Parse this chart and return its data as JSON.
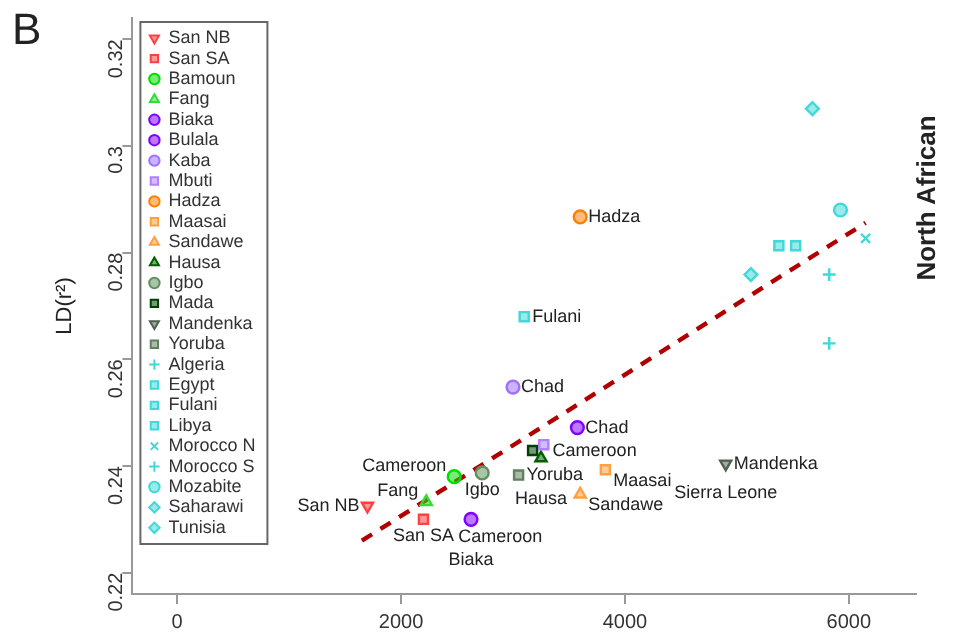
{
  "chart_data": {
    "type": "scatter",
    "ylabel": "LD(r²)",
    "xlim": [
      -400,
      6600
    ],
    "ylim": [
      0.216,
      0.324
    ],
    "xticks": [
      0,
      2000,
      4000,
      6000
    ],
    "yticks": [
      0.22,
      0.24,
      0.26,
      0.28,
      0.3,
      0.32
    ],
    "grid": false,
    "legend": "top left",
    "series": [
      {
        "name": "San NB",
        "color": "#ff4040",
        "marker": "triangle-down",
        "x": [
          1700
        ],
        "values": [
          0.2325
        ]
      },
      {
        "name": "San SA",
        "color": "#ff4040",
        "marker": "square",
        "x": [
          2200
        ],
        "values": [
          0.23
        ]
      },
      {
        "name": "Bamoun",
        "color": "#00dd00",
        "marker": "circle",
        "x": [
          2475
        ],
        "values": [
          0.238
        ]
      },
      {
        "name": "Fang",
        "color": "#33dd33",
        "marker": "triangle",
        "x": [
          2225
        ],
        "values": [
          0.2333
        ]
      },
      {
        "name": "Biaka",
        "color": "#8000ff",
        "marker": "circle",
        "x": [
          2625
        ],
        "values": [
          0.23
        ]
      },
      {
        "name": "Bulala",
        "color": "#8000ff",
        "marker": "circle",
        "x": [
          3575
        ],
        "values": [
          0.2472
        ]
      },
      {
        "name": "Kaba",
        "color": "#a070ff",
        "marker": "circle",
        "x": [
          3000
        ],
        "values": [
          0.2548
        ]
      },
      {
        "name": "Mbuti",
        "color": "#b080ff",
        "marker": "square",
        "x": [
          3275
        ],
        "values": [
          0.244
        ]
      },
      {
        "name": "Hadza",
        "color": "#ff8000",
        "marker": "circle",
        "x": [
          3600
        ],
        "values": [
          0.2867
        ]
      },
      {
        "name": "Maasai",
        "color": "#ffa040",
        "marker": "square",
        "x": [
          3825
        ],
        "values": [
          0.2393
        ]
      },
      {
        "name": "Sandawe",
        "color": "#ffa040",
        "marker": "triangle",
        "x": [
          3600
        ],
        "values": [
          0.2347
        ]
      },
      {
        "name": "Hausa",
        "color": "#006000",
        "marker": "triangle",
        "x": [
          3250
        ],
        "values": [
          0.2415
        ]
      },
      {
        "name": "Igbo",
        "color": "#609060",
        "marker": "circle",
        "x": [
          2725
        ],
        "values": [
          0.2387
        ]
      },
      {
        "name": "Mada",
        "color": "#004000",
        "marker": "square",
        "x": [
          3175
        ],
        "values": [
          0.2429
        ]
      },
      {
        "name": "Mandenka",
        "color": "#506050",
        "marker": "triangle-down",
        "x": [
          4900
        ],
        "values": [
          0.2404
        ]
      },
      {
        "name": "Yoruba",
        "color": "#608060",
        "marker": "square",
        "x": [
          3050
        ],
        "values": [
          0.2383
        ]
      },
      {
        "name": "Algeria",
        "color": "#40d8d8",
        "marker": "cross",
        "x": [
          5825
        ],
        "values": [
          0.2759
        ]
      },
      {
        "name": "Egypt",
        "color": "#40d8d8",
        "marker": "square",
        "x": [
          5375
        ],
        "values": [
          0.2813
        ]
      },
      {
        "name": "Fulani",
        "color": "#40d8d8",
        "marker": "square",
        "x": [
          3100
        ],
        "values": [
          0.268
        ]
      },
      {
        "name": "Libya",
        "color": "#40d8d8",
        "marker": "square",
        "x": [
          5525
        ],
        "values": [
          0.2813
        ]
      },
      {
        "name": "Morocco N",
        "color": "#40d8d8",
        "marker": "x",
        "x": [
          6150
        ],
        "values": [
          0.2827
        ]
      },
      {
        "name": "Morocco S",
        "color": "#40d8d8",
        "marker": "cross",
        "x": [
          5825
        ],
        "values": [
          0.263
        ]
      },
      {
        "name": "Mozabite",
        "color": "#40d8d8",
        "marker": "circle",
        "x": [
          5925
        ],
        "values": [
          0.288
        ]
      },
      {
        "name": "Saharawi",
        "color": "#40d8d8",
        "marker": "diamond",
        "x": [
          5125
        ],
        "values": [
          0.2759
        ]
      },
      {
        "name": "Tunisia",
        "color": "#40d8d8",
        "marker": "diamond",
        "x": [
          5675
        ],
        "values": [
          0.307
        ]
      },
      {
        "type": "line",
        "color": "#b00000",
        "line_style": "dashed",
        "marker": "none",
        "x": [
          1650,
          6150
        ],
        "values": [
          0.226,
          0.2856
        ]
      }
    ],
    "annotations": [
      "B",
      {
        "text": "Cameroon",
        "x": 3175,
        "y": 0.2429
      },
      {
        "text": "Hausa",
        "x": 3250,
        "y": 0.2415
      },
      {
        "text": "San NB",
        "x": 1700,
        "y": 0.2325
      },
      {
        "text": "San SA",
        "x": 2200,
        "y": 0.23
      },
      {
        "text": "Fang",
        "x": 2225,
        "y": 0.2333
      },
      {
        "text": "Cameroon",
        "x": 2475,
        "y": 0.238
      },
      {
        "text": "Cameroon",
        "x": 2225,
        "y": 0.2333
      },
      {
        "text": "Igbo",
        "x": 2725,
        "y": 0.2387
      },
      {
        "text": "Yoruba",
        "x": 3050,
        "y": 0.2383
      },
      {
        "text": "Maasai",
        "x": 3825,
        "y": 0.2393
      },
      {
        "text": "Chad",
        "x": 3575,
        "y": 0.2472
      },
      {
        "text": "Chad",
        "x": 3000,
        "y": 0.2548
      },
      {
        "text": "Fulani",
        "x": 3100,
        "y": 0.268
      },
      {
        "text": "Hadza",
        "x": 3600,
        "y": 0.2867
      },
      {
        "text": "Sandawe",
        "x": 3600,
        "y": 0.2347
      },
      {
        "text": "Biaka",
        "x": 2625,
        "y": 0.23
      },
      {
        "text": "Mandenka",
        "x": 4900,
        "y": 0.2404
      },
      {
        "text": "Sierra Leone",
        "x": 4900,
        "y": 0.2404
      },
      "North African"
    ]
  }
}
